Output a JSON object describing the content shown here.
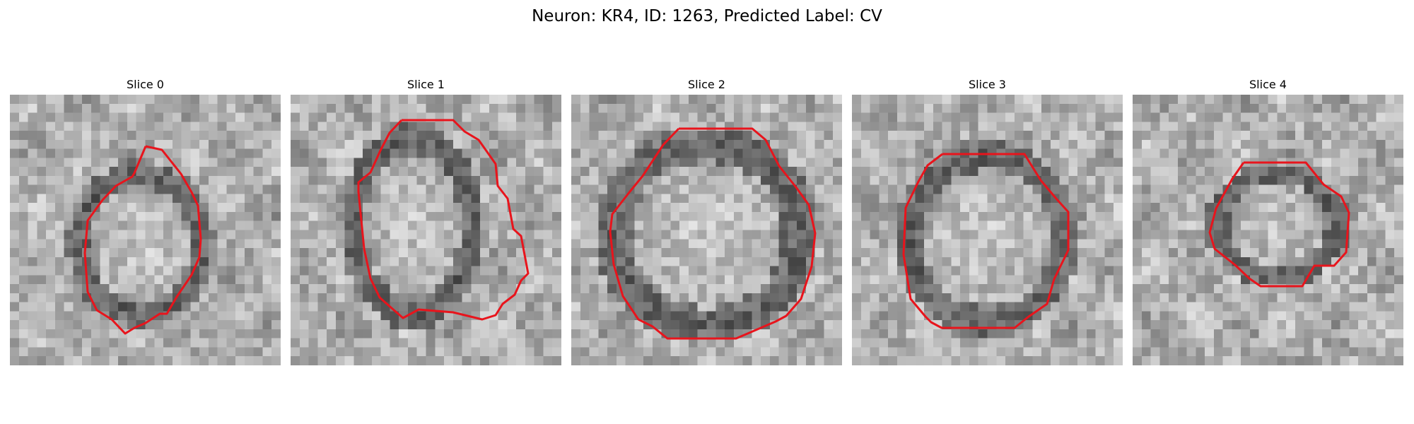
{
  "figure": {
    "title": "Neuron: KR4, ID: 1263, Predicted Label: CV"
  },
  "panels": [
    {
      "title": "Slice 0"
    },
    {
      "title": "Slice 1"
    },
    {
      "title": "Slice 2"
    },
    {
      "title": "Slice 3"
    },
    {
      "title": "Slice 4"
    }
  ],
  "colors": {
    "contour": "#e8141c",
    "colormap": "gray"
  }
}
